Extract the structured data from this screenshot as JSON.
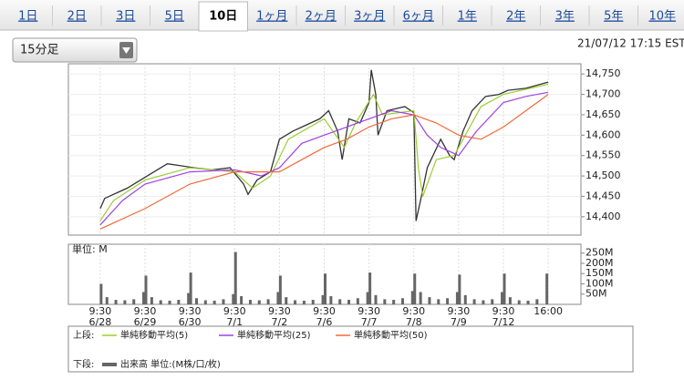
{
  "tabs": [
    "1日",
    "2日",
    "3日",
    "5日",
    "10日",
    "1ヶ月",
    "2ヶ月",
    "3ヶ月",
    "6ヶ月",
    "1年",
    "2年",
    "3年",
    "5年",
    "10年"
  ],
  "selected_tab": 4,
  "dropdown": "15分足",
  "timestamp": "21/07/12 17:15 EST",
  "chart_data": [
    {
      "type": "line",
      "price": {
        "color": "#333333",
        "x": [
          0,
          0.1,
          0.3,
          0.6,
          0.9,
          1.2,
          1.5,
          1.8,
          2.1,
          2.5,
          2.9,
          3.2,
          3.3,
          3.5,
          3.8,
          4.0,
          4.3,
          4.6,
          4.9,
          5.1,
          5.3,
          5.4,
          5.55,
          5.8,
          6.0,
          6.05,
          6.15,
          6.2,
          6.4,
          6.8,
          7.0,
          7.05,
          7.15,
          7.3,
          7.6,
          7.8,
          7.9,
          8.1,
          8.3,
          8.6,
          8.9,
          9.1,
          9.5,
          10
        ],
        "values": [
          14420,
          14445,
          14455,
          14470,
          14490,
          14510,
          14530,
          14525,
          14520,
          14515,
          14520,
          14480,
          14455,
          14490,
          14510,
          14590,
          14610,
          14625,
          14640,
          14660,
          14610,
          14540,
          14640,
          14630,
          14680,
          14760,
          14700,
          14600,
          14660,
          14670,
          14655,
          14390,
          14440,
          14520,
          14590,
          14550,
          14540,
          14610,
          14660,
          14695,
          14700,
          14710,
          14715,
          14730
        ]
      },
      "series": [
        {
          "name": "単純移動平均(5)",
          "color": "#9acd32",
          "x": [
            0,
            0.3,
            1,
            2,
            3,
            3.4,
            3.8,
            4.2,
            5,
            5.45,
            5.7,
            6.1,
            6.3,
            7,
            7.1,
            7.2,
            7.5,
            7.9,
            8.5,
            9,
            10
          ],
          "values": [
            14390,
            14440,
            14490,
            14520,
            14510,
            14470,
            14500,
            14590,
            14640,
            14570,
            14630,
            14700,
            14650,
            14660,
            14520,
            14450,
            14540,
            14550,
            14670,
            14700,
            14725
          ]
        },
        {
          "name": "単純移動平均(25)",
          "color": "#a040e0",
          "x": [
            0,
            0.5,
            1,
            2,
            3,
            3.6,
            4,
            4.5,
            5,
            5.5,
            6,
            6.5,
            7,
            7.3,
            7.6,
            8,
            8.4,
            9,
            9.5,
            10
          ],
          "values": [
            14380,
            14440,
            14480,
            14510,
            14515,
            14500,
            14520,
            14580,
            14600,
            14620,
            14640,
            14660,
            14650,
            14600,
            14570,
            14550,
            14610,
            14680,
            14695,
            14705
          ]
        },
        {
          "name": "単純移動平均(50)",
          "color": "#f06a3a",
          "x": [
            0,
            1,
            2,
            3,
            4,
            4.5,
            5,
            5.5,
            6,
            6.5,
            7,
            7.5,
            8,
            8.5,
            9,
            9.5,
            10
          ],
          "values": [
            14370,
            14420,
            14480,
            14510,
            14510,
            14540,
            14570,
            14590,
            14620,
            14640,
            14650,
            14630,
            14600,
            14590,
            14620,
            14660,
            14700
          ]
        }
      ],
      "xlim": [
        -0.71,
        10.73
      ],
      "ylim": [
        14355,
        14775
      ],
      "yticks": [
        {
          "value": 14400,
          "label": "14,400"
        },
        {
          "value": 14450,
          "label": "14,450"
        },
        {
          "value": 14500,
          "label": "14,500"
        },
        {
          "value": 14550,
          "label": "14,550"
        },
        {
          "value": 14600,
          "label": "14,600"
        },
        {
          "value": 14650,
          "label": "14,650"
        },
        {
          "value": 14700,
          "label": "14,700"
        },
        {
          "value": 14750,
          "label": "14,750"
        }
      ],
      "grid": true,
      "legend_prefix": "上段:"
    },
    {
      "type": "bar",
      "unit_label": "単位: M",
      "series": [
        {
          "name": "出来高 単位:(M株/口/枚)",
          "color": "#666666",
          "x": [
            0.02,
            0.15,
            0.35,
            0.55,
            0.75,
            0.97,
            1.02,
            1.15,
            1.35,
            1.55,
            1.75,
            1.97,
            2.02,
            2.15,
            2.35,
            2.55,
            2.75,
            2.97,
            3.02,
            3.15,
            3.35,
            3.55,
            3.75,
            3.97,
            4.02,
            4.15,
            4.35,
            4.55,
            4.75,
            4.97,
            5.02,
            5.15,
            5.35,
            5.55,
            5.75,
            5.97,
            6.02,
            6.15,
            6.35,
            6.55,
            6.75,
            6.97,
            7.02,
            7.15,
            7.35,
            7.55,
            7.75,
            7.97,
            8.02,
            8.15,
            8.35,
            8.55,
            8.75,
            8.97,
            9.02,
            9.15,
            9.35,
            9.55,
            9.75,
            9.97
          ],
          "values": [
            100,
            35,
            22,
            20,
            25,
            60,
            140,
            35,
            20,
            18,
            22,
            55,
            155,
            30,
            20,
            18,
            25,
            50,
            255,
            40,
            22,
            20,
            25,
            60,
            140,
            35,
            20,
            18,
            22,
            45,
            150,
            40,
            25,
            22,
            30,
            60,
            155,
            45,
            25,
            22,
            30,
            65,
            150,
            60,
            35,
            25,
            30,
            60,
            145,
            45,
            25,
            20,
            25,
            60,
            150,
            35,
            20,
            18,
            25,
            150
          ]
        }
      ],
      "xlim": [
        -0.71,
        10.73
      ],
      "ylim": [
        0,
        293
      ],
      "yticks": [
        {
          "value": 50,
          "label": "50M"
        },
        {
          "value": 100,
          "label": "100M"
        },
        {
          "value": 150,
          "label": "150M"
        },
        {
          "value": 200,
          "label": "200M"
        },
        {
          "value": 250,
          "label": "250M"
        }
      ],
      "xticks": [
        {
          "value": 0,
          "label": "9:30",
          "date": "6/28"
        },
        {
          "value": 1,
          "label": "9:30",
          "date": "6/29"
        },
        {
          "value": 2,
          "label": "9:30",
          "date": "6/30"
        },
        {
          "value": 3,
          "label": "9:30",
          "date": "7/1"
        },
        {
          "value": 4,
          "label": "9:30",
          "date": "7/2"
        },
        {
          "value": 5,
          "label": "9:30",
          "date": "7/6"
        },
        {
          "value": 6,
          "label": "9:30",
          "date": "7/7"
        },
        {
          "value": 7,
          "label": "9:30",
          "date": "7/8"
        },
        {
          "value": 8,
          "label": "9:30",
          "date": "7/9"
        },
        {
          "value": 9,
          "label": "9:30",
          "date": "7/12"
        },
        {
          "value": 10,
          "label": "16:00"
        }
      ],
      "legend_prefix": "下段:"
    }
  ]
}
